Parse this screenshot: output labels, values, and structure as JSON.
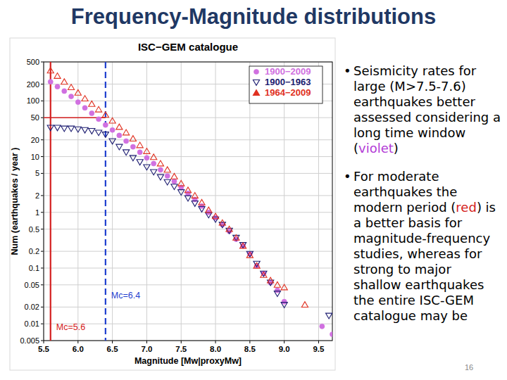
{
  "slide": {
    "title": "Frequency-Magnitude distributions",
    "bullets": [
      [
        {
          "text": "Seismicity rates for large (M>7.5-7.6) earthquakes better assessed considering a long time window ("
        },
        {
          "text": "violet",
          "color": "#b23cd6"
        },
        {
          "text": ")"
        }
      ],
      [
        {
          "text": "For moderate earthquakes the modern period ("
        },
        {
          "text": "red",
          "color": "#d42020"
        },
        {
          "text": ") is a better basis for magnitude-frequency studies, whereas for strong to major shallow earthquakes the entire ISC-GEM catalogue may be"
        }
      ]
    ],
    "page_number": "16"
  },
  "chart_data": {
    "type": "scatter",
    "title": "ISC−GEM catalogue",
    "x_label": "Magnitude [Mw|proxyMw]",
    "y_label": "Num (earthquakes / year )",
    "log": "y",
    "grid": true,
    "legend": "top-right",
    "xlim": [
      5.5,
      9.7
    ],
    "ylim": [
      0.005,
      500
    ],
    "xticks": [
      5.5,
      {
        "value": 6,
        "label": "6.0"
      },
      6.5,
      {
        "value": 7,
        "label": "7.0"
      },
      7.5,
      {
        "value": 8,
        "label": "8.0"
      },
      8.5,
      {
        "value": 9,
        "label": "9.0"
      },
      9.5
    ],
    "yticks": [
      0.005,
      0.01,
      0.02,
      0.05,
      0.1,
      0.2,
      0.5,
      1,
      2,
      5,
      10,
      20,
      50,
      100,
      200,
      500
    ],
    "series": [
      {
        "name": "1900−2009",
        "color": "#d070e0",
        "marker": "circle",
        "x": [
          5.6,
          5.7,
          5.8,
          5.9,
          6.0,
          6.1,
          6.2,
          6.3,
          6.4,
          6.5,
          6.6,
          6.7,
          6.8,
          6.9,
          7.0,
          7.1,
          7.2,
          7.3,
          7.4,
          7.5,
          7.6,
          7.7,
          7.8,
          7.9,
          8.0,
          8.1,
          8.2,
          8.3,
          8.4,
          8.5,
          8.6,
          8.7,
          8.8,
          8.9,
          9.0,
          9.55,
          9.7
        ],
        "values": [
          220,
          180,
          150,
          120,
          95,
          75,
          60,
          47,
          37,
          30,
          24,
          19,
          15,
          12,
          9.5,
          7.5,
          5.8,
          4.5,
          3.6,
          2.8,
          2.2,
          1.7,
          1.3,
          1.0,
          0.8,
          0.6,
          0.46,
          0.33,
          0.25,
          0.18,
          0.11,
          0.08,
          0.055,
          0.04,
          0.025,
          0.009,
          0.0065
        ]
      },
      {
        "name": "1900−1963",
        "color": "#1c1c70",
        "marker": "triangle-down",
        "x": [
          5.6,
          5.7,
          5.8,
          5.9,
          6.0,
          6.1,
          6.2,
          6.3,
          6.4,
          6.5,
          6.6,
          6.7,
          6.8,
          6.9,
          7.0,
          7.1,
          7.2,
          7.3,
          7.4,
          7.5,
          7.6,
          7.7,
          7.8,
          7.9,
          8.0,
          8.1,
          8.2,
          8.3,
          8.4,
          8.5,
          8.6,
          8.7,
          8.8,
          8.9,
          9.0,
          9.65
        ],
        "values": [
          33,
          33,
          32,
          32,
          31,
          30,
          29,
          27,
          25,
          19,
          15,
          12,
          9.5,
          8,
          6.5,
          5.3,
          4.3,
          3.5,
          2.9,
          2.3,
          1.8,
          1.45,
          1.15,
          0.9,
          0.75,
          0.6,
          0.47,
          0.35,
          0.26,
          0.18,
          0.12,
          0.08,
          0.055,
          0.035,
          0.022,
          0.014
        ]
      },
      {
        "name": "1964−2009",
        "color": "#e03020",
        "marker": "triangle-up",
        "x": [
          5.6,
          5.7,
          5.8,
          5.9,
          6.0,
          6.1,
          6.2,
          6.3,
          6.4,
          6.5,
          6.6,
          6.7,
          6.8,
          6.9,
          7.0,
          7.1,
          7.2,
          7.3,
          7.4,
          7.5,
          7.6,
          7.7,
          7.8,
          7.9,
          8.0,
          8.1,
          8.2,
          8.3,
          8.4,
          8.5,
          8.6,
          8.7,
          8.8,
          8.9,
          9.0,
          9.3
        ],
        "values": [
          350,
          280,
          220,
          175,
          140,
          110,
          88,
          70,
          56,
          44,
          34,
          27,
          21,
          16,
          12.5,
          9.8,
          7.5,
          5.8,
          4.4,
          3.3,
          2.5,
          2.0,
          1.5,
          1.1,
          0.85,
          0.65,
          0.5,
          0.35,
          0.25,
          0.17,
          0.11,
          0.075,
          0.06,
          0.05,
          0.045,
          0.022
        ]
      }
    ],
    "vlines": [
      {
        "x": 5.6,
        "label": "Mc=5.6",
        "color": "#d42020",
        "line_style": "solid"
      },
      {
        "x": 6.4,
        "label": "Mc=6.4",
        "color": "#1f3fcf",
        "line_style": "dashed"
      }
    ],
    "hlines": [
      {
        "y": 50,
        "x_end": 6.4,
        "color": "#d42020",
        "line_style": "solid"
      }
    ]
  }
}
